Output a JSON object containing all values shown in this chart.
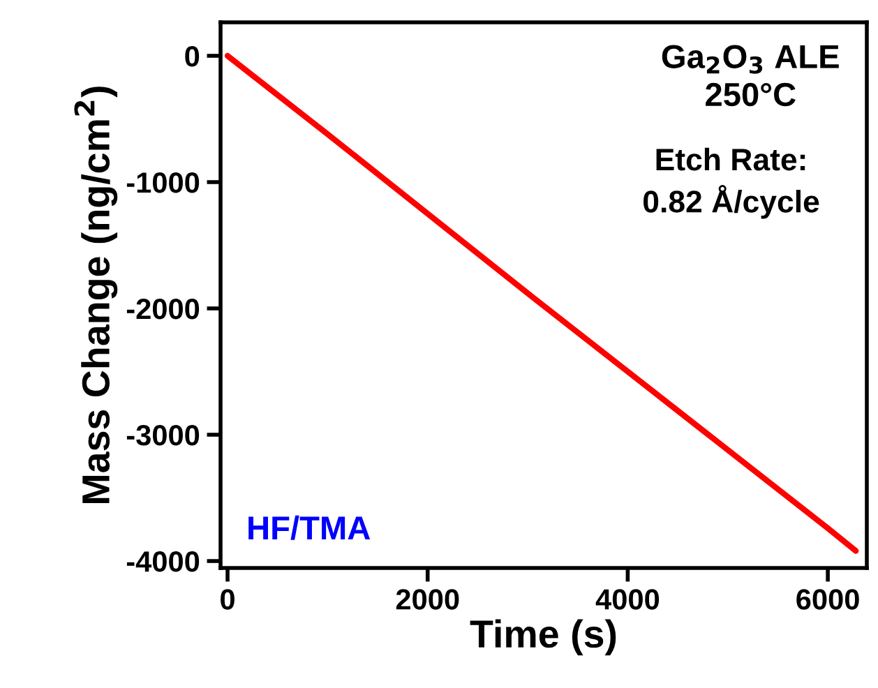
{
  "chart_data": {
    "type": "line",
    "xlabel": "Time (s)",
    "ylabel": "Mass Change (ng/cm$^{2}$)",
    "x": [
      0,
      1000,
      2000,
      3000,
      4000,
      5000,
      6000,
      6280
    ],
    "series": [
      {
        "color": "#ff0000",
        "values": [
          0,
          -620,
          -1250,
          -1880,
          -2500,
          -3120,
          -3740,
          -3920
        ]
      }
    ],
    "xlim": [
      -70,
      6390
    ],
    "xticks": [
      0,
      2000,
      4000,
      6000
    ],
    "ylim": [
      -4055,
      265
    ],
    "yticks": [
      0,
      -1000,
      -2000,
      -3000,
      -4000
    ],
    "annotations": [
      "Ga$_{2}$O$_{3}$ ALE\n250°C",
      "Etch Rate:\n0.82 Å/cycle",
      "HF/TMA"
    ],
    "grid": false,
    "legend": false,
    "marker": "none",
    "line_style": "solid"
  }
}
